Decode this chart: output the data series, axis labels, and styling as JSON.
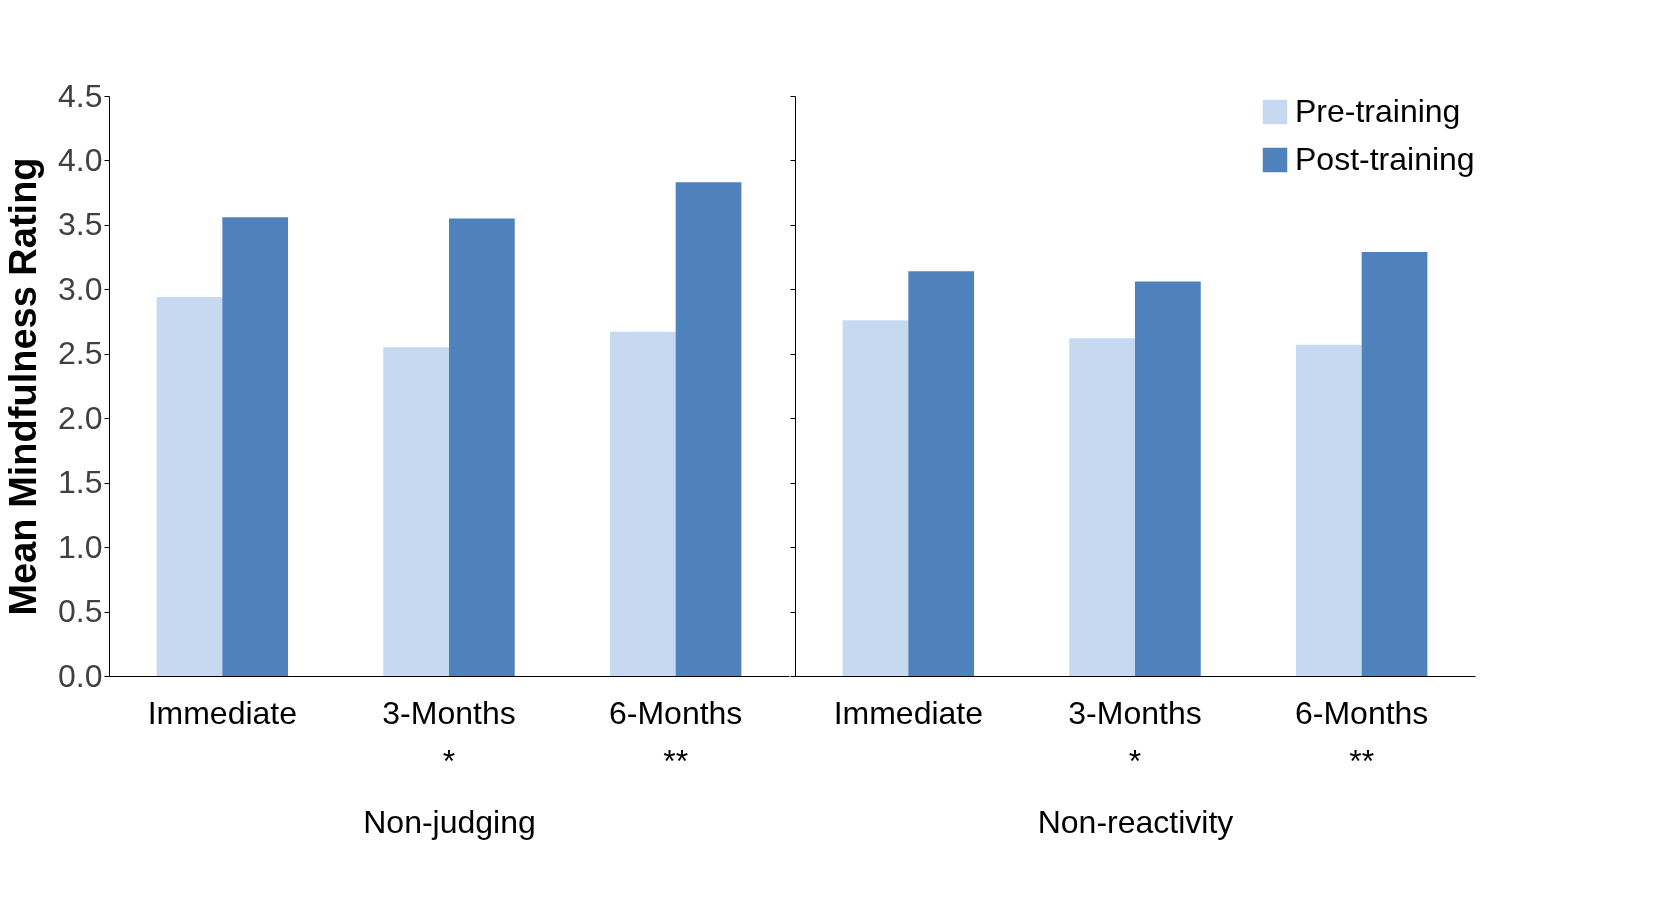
{
  "chart_data": [
    {
      "type": "bar",
      "categories": [
        "Immediate",
        "3-Months\n*",
        "6-Months\n**"
      ],
      "xlabel": "Non-judging",
      "ylabel": "Mean Mindfulness Rating",
      "ylim": [
        0,
        4.5
      ],
      "yticks": [
        {
          "value": 0,
          "label": "0.0"
        },
        0.5,
        {
          "value": 1,
          "label": "1.0"
        },
        1.5,
        {
          "value": 2,
          "label": "2.0"
        },
        2.5,
        {
          "value": 3,
          "label": "3.0"
        },
        3.5,
        {
          "value": 4,
          "label": "4.0"
        },
        4.5
      ],
      "grid": false,
      "series": [
        {
          "color": "#c6d9f1",
          "values": [
            2.94,
            2.55,
            2.67
          ]
        },
        {
          "color": "#4f81bd",
          "values": [
            3.56,
            3.55,
            3.83
          ]
        }
      ]
    },
    {
      "type": "bar",
      "categories": [
        "Immediate",
        "3-Months\n*",
        "6-Months\n**"
      ],
      "xlabel": "Non-reactivity",
      "ylim": [
        0,
        4.5
      ],
      "yticks": [
        0,
        0.5,
        1,
        1.5,
        2,
        2.5,
        3,
        3.5,
        4,
        4.5
      ],
      "tick_labels": "x",
      "grid": false,
      "legend": "top right",
      "series": [
        {
          "name": "Pre-training",
          "color": "#c6d9f1",
          "values": [
            2.76,
            2.62,
            2.57
          ]
        },
        {
          "name": "Post-training",
          "color": "#4f81bd",
          "values": [
            3.14,
            3.06,
            3.29
          ]
        }
      ]
    }
  ]
}
